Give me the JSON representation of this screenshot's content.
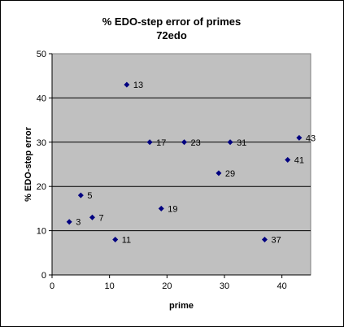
{
  "colors": {
    "plot_background": "#c0c0c0",
    "marker": "#000080",
    "gridline": "#000000"
  },
  "chart_data": {
    "type": "scatter",
    "title": [
      "% EDO-step error of primes",
      "72edo"
    ],
    "xlabel": "prime",
    "ylabel": "% EDO-step error",
    "xlim": [
      0,
      45
    ],
    "ylim": [
      0,
      50
    ],
    "xticks": [
      0,
      10,
      20,
      30,
      40
    ],
    "yticks": [
      0,
      10,
      20,
      30,
      40,
      50
    ],
    "grid": "horizontal",
    "legend": "none",
    "points": [
      {
        "x": 3,
        "y": 12,
        "label": "3"
      },
      {
        "x": 5,
        "y": 18,
        "label": "5"
      },
      {
        "x": 7,
        "y": 13,
        "label": "7"
      },
      {
        "x": 11,
        "y": 8,
        "label": "11"
      },
      {
        "x": 13,
        "y": 43,
        "label": "13"
      },
      {
        "x": 17,
        "y": 30,
        "label": "17"
      },
      {
        "x": 19,
        "y": 15,
        "label": "19"
      },
      {
        "x": 23,
        "y": 30,
        "label": "23"
      },
      {
        "x": 29,
        "y": 23,
        "label": "29"
      },
      {
        "x": 31,
        "y": 30,
        "label": "31"
      },
      {
        "x": 37,
        "y": 8,
        "label": "37"
      },
      {
        "x": 41,
        "y": 26,
        "label": "41"
      },
      {
        "x": 43,
        "y": 31,
        "label": "43"
      }
    ]
  }
}
